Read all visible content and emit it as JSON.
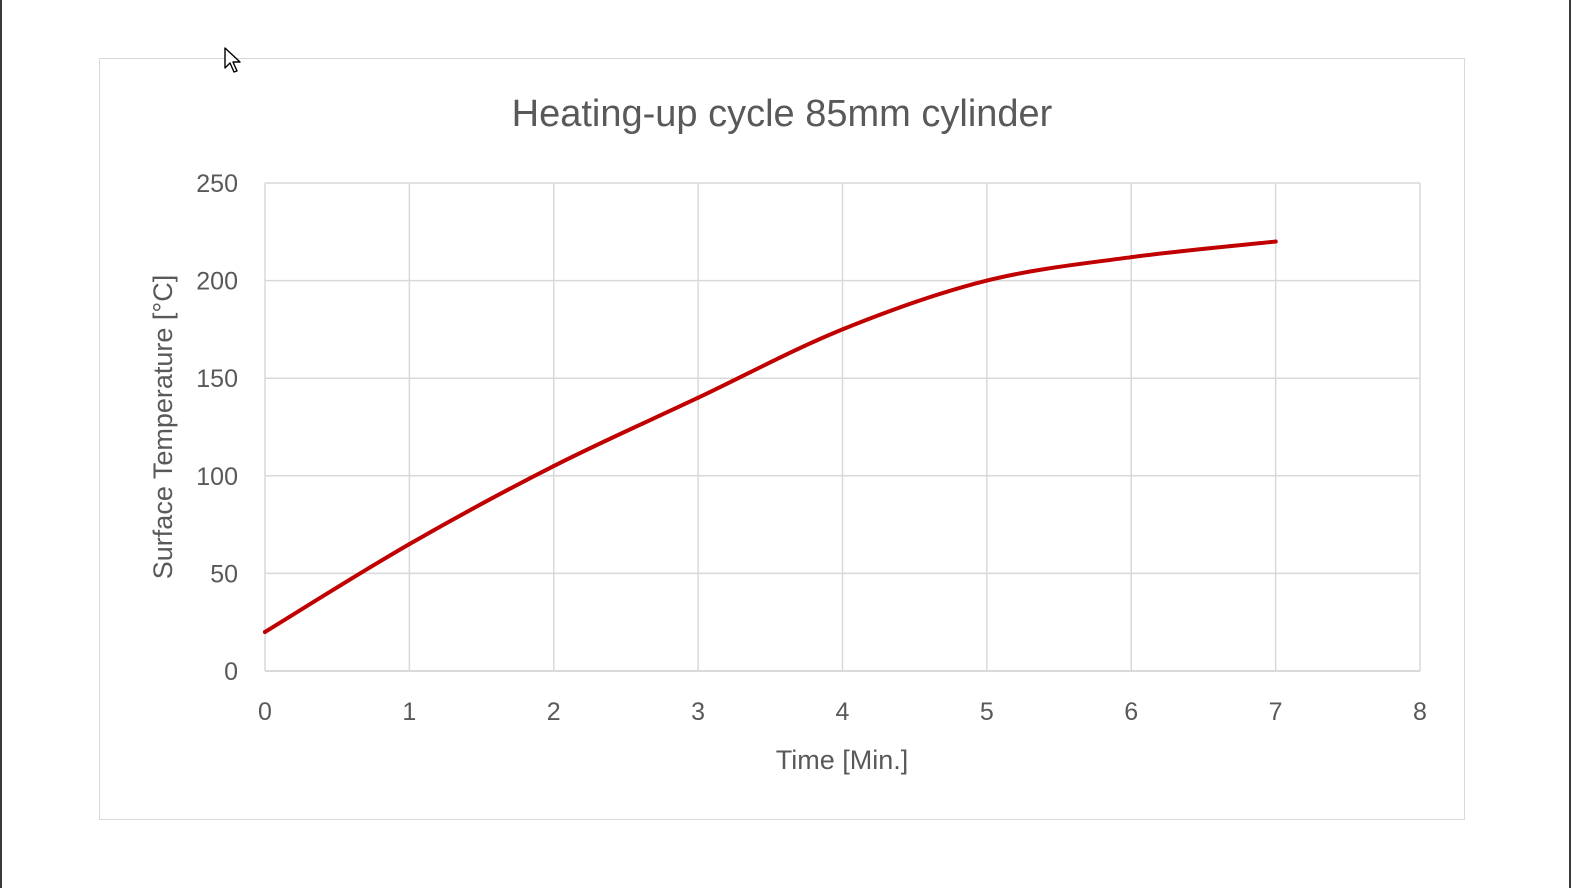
{
  "chart_data": {
    "type": "line",
    "title": "Heating-up cycle 85mm cylinder",
    "xlabel": "Time [Min.]",
    "ylabel": "Surface Temperature [°C]",
    "xlim": [
      0,
      8
    ],
    "ylim": [
      0,
      250
    ],
    "xticks": [
      "0",
      "1",
      "2",
      "3",
      "4",
      "5",
      "6",
      "7",
      "8"
    ],
    "yticks": [
      "0",
      "50",
      "100",
      "150",
      "200",
      "250"
    ],
    "grid": true,
    "legend": "none",
    "series": [
      {
        "color": "#c00000",
        "x": [
          0,
          1,
          2,
          3,
          4,
          5,
          6,
          7
        ],
        "y": [
          20,
          65,
          105,
          140,
          175,
          200,
          212,
          220
        ]
      }
    ]
  },
  "colors": {
    "line": "#c00000",
    "grid": "#d9d9d9",
    "text": "#595959",
    "title": "#595959"
  },
  "cursor": {
    "icon": "mouse-pointer-icon"
  }
}
